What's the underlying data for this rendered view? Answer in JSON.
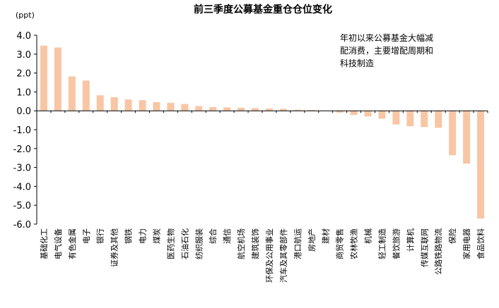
{
  "chart_data": {
    "type": "bar",
    "title": "前三季度公募基金重仓仓位变化",
    "ylabel": "(ppt)",
    "ylim": [
      -6.0,
      4.0
    ],
    "ytick_step": 1.0,
    "categories": [
      "基础化工",
      "电气设备",
      "有色金属",
      "电子",
      "银行",
      "证券及其他",
      "钢铁",
      "电力",
      "煤炭",
      "医药生物",
      "石油石化",
      "纺织服装",
      "综合",
      "通信",
      "航空机场",
      "建筑装饰",
      "环保及公用事业",
      "汽车及其零部件",
      "港口航运",
      "房地产",
      "建材",
      "商贸零售",
      "农林牧渔",
      "机械",
      "轻工制造",
      "餐饮旅游",
      "计算机",
      "传媒互联网",
      "公路铁路物流",
      "保险",
      "家用电器",
      "食品饮料"
    ],
    "values": [
      3.45,
      3.35,
      1.82,
      1.6,
      0.82,
      0.72,
      0.6,
      0.56,
      0.46,
      0.42,
      0.36,
      0.25,
      0.2,
      0.18,
      0.16,
      0.14,
      0.12,
      0.1,
      0.06,
      0.04,
      0.02,
      -0.1,
      -0.22,
      -0.3,
      -0.42,
      -0.72,
      -0.82,
      -0.86,
      -0.9,
      -2.35,
      -2.8,
      -5.7
    ],
    "annotation": [
      "年初以来公募基金大幅减",
      "配消费，主要增配周期和",
      "科技制造"
    ],
    "bar_color": "#F8C6A4",
    "grid": false,
    "legend": "none"
  }
}
